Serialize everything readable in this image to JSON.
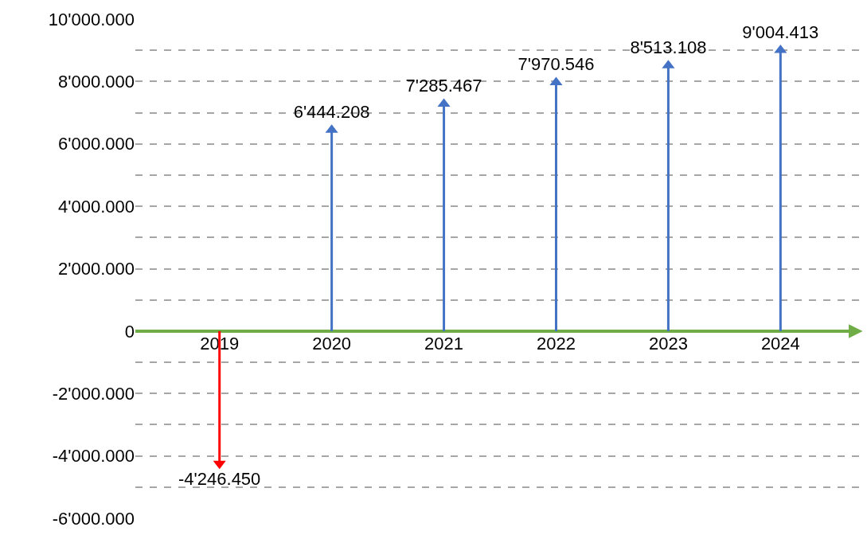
{
  "chart_data": {
    "type": "lollipop",
    "categories": [
      "2019",
      "2020",
      "2021",
      "2022",
      "2023",
      "2024"
    ],
    "values": [
      -4246.45,
      6444.208,
      7285.467,
      7970.546,
      8513.108,
      9004.413
    ],
    "colors": [
      "#ff0000",
      "#4472c4",
      "#4472c4",
      "#4472c4",
      "#4472c4",
      "#4472c4"
    ],
    "value_labels": [
      "-4'246.450",
      "6'444.208",
      "7'285.467",
      "7'970.546",
      "8'513.108",
      "9'004.413"
    ],
    "marker": "triangle",
    "ylim": [
      -6000,
      10000
    ],
    "yticks": [
      {
        "value": -6000,
        "label": "-6'000.000"
      },
      {
        "value": -5000,
        "label": null
      },
      {
        "value": -4000,
        "label": "-4'000.000"
      },
      {
        "value": -3000,
        "label": null
      },
      {
        "value": -2000,
        "label": "-2'000.000"
      },
      {
        "value": -1000,
        "label": null
      },
      0,
      {
        "value": 1000,
        "label": null
      },
      {
        "value": 2000,
        "label": "2'000.000"
      },
      {
        "value": 3000,
        "label": null
      },
      {
        "value": 4000,
        "label": "4'000.000"
      },
      {
        "value": 5000,
        "label": null
      },
      {
        "value": 6000,
        "label": "6'000.000"
      },
      {
        "value": 7000,
        "label": null
      },
      {
        "value": 8000,
        "label": "8'000.000"
      },
      {
        "value": 9000,
        "label": null
      },
      {
        "value": 10000,
        "label": "10'000.000"
      }
    ],
    "grid": "y",
    "legend": false
  }
}
